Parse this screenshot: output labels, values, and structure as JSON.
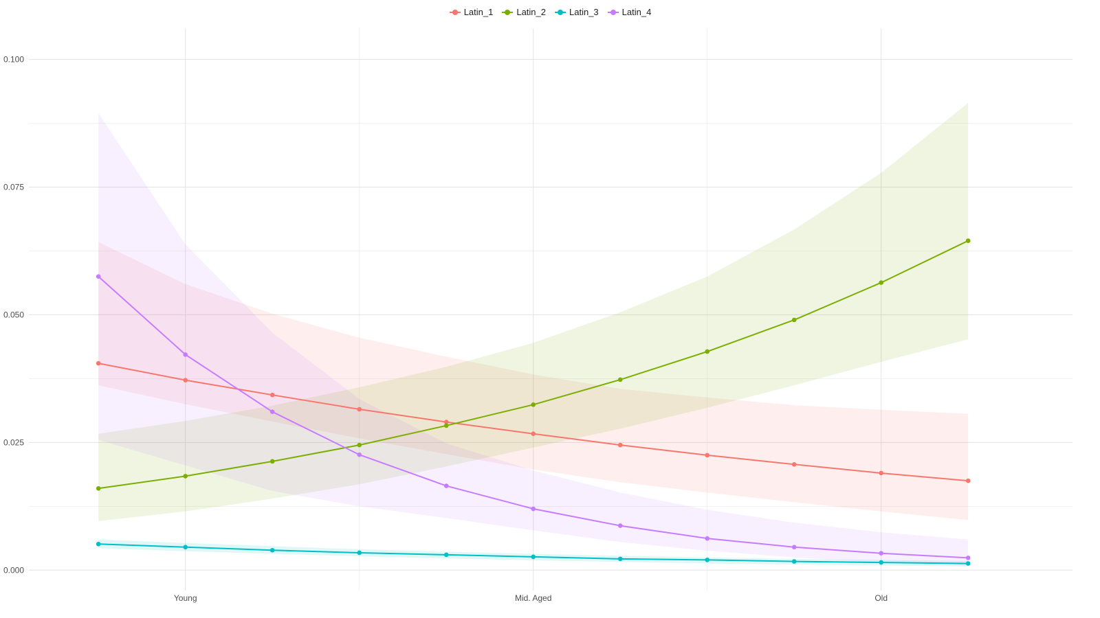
{
  "chart_data": {
    "type": "line",
    "title": "",
    "xlabel": "",
    "ylabel": "",
    "x": [
      1,
      1.5,
      2,
      2.5,
      3,
      3.5,
      4,
      4.5,
      5,
      5.5,
      6
    ],
    "xlim": [
      0.6,
      6.6
    ],
    "x_ticks": [
      {
        "value": 1.5,
        "label": "Young"
      },
      {
        "value": 3.5,
        "label": "Mid. Aged"
      },
      {
        "value": 5.5,
        "label": "Old"
      }
    ],
    "x_minor_ticks": [
      2.5,
      4.5
    ],
    "ylim": [
      -0.004,
      0.106
    ],
    "y_ticks": [
      0.0,
      0.025,
      0.05,
      0.075,
      0.1
    ],
    "y_tick_labels": [
      "0.000",
      "0.025",
      "0.050",
      "0.075",
      "0.100"
    ],
    "y_minor_ticks": [
      0.0125,
      0.0375,
      0.0625,
      0.0875
    ],
    "grid": true,
    "legend_position": "top",
    "series": [
      {
        "name": "Latin_1",
        "color": "#F8766D",
        "values": [
          0.0405,
          0.0372,
          0.0343,
          0.0315,
          0.029,
          0.0267,
          0.0245,
          0.0225,
          0.0207,
          0.019,
          0.0175
        ],
        "lower": [
          0.0362,
          0.0325,
          0.0291,
          0.0258,
          0.0227,
          0.0197,
          0.0172,
          0.0152,
          0.0133,
          0.0115,
          0.0098
        ],
        "upper": [
          0.0642,
          0.056,
          0.0502,
          0.0455,
          0.0418,
          0.0383,
          0.0355,
          0.0338,
          0.0323,
          0.0314,
          0.0306
        ]
      },
      {
        "name": "Latin_2",
        "color": "#7CAE00",
        "values": [
          0.016,
          0.0184,
          0.0213,
          0.0245,
          0.0283,
          0.0324,
          0.0373,
          0.0428,
          0.049,
          0.0563,
          0.0645
        ],
        "lower": [
          0.0096,
          0.0115,
          0.014,
          0.0168,
          0.0203,
          0.024,
          0.0277,
          0.0318,
          0.0362,
          0.0408,
          0.0452
        ],
        "upper": [
          0.0267,
          0.0292,
          0.0322,
          0.0358,
          0.0398,
          0.0445,
          0.0505,
          0.0575,
          0.0667,
          0.0778,
          0.0915
        ]
      },
      {
        "name": "Latin_3",
        "color": "#00BFC4",
        "values": [
          0.0051,
          0.0045,
          0.0039,
          0.0034,
          0.003,
          0.0026,
          0.0022,
          0.002,
          0.0017,
          0.0015,
          0.0013
        ],
        "lower": [
          0.0043,
          0.0037,
          0.0032,
          0.0027,
          0.0023,
          0.0019,
          0.0016,
          0.0013,
          0.0011,
          0.0009,
          0.0007
        ],
        "upper": [
          0.006,
          0.0053,
          0.0047,
          0.0041,
          0.0036,
          0.0032,
          0.0028,
          0.0025,
          0.0022,
          0.002,
          0.0018
        ]
      },
      {
        "name": "Latin_4",
        "color": "#C77CFF",
        "values": [
          0.0575,
          0.0422,
          0.031,
          0.0226,
          0.0165,
          0.012,
          0.0087,
          0.0062,
          0.0045,
          0.0033,
          0.0024
        ],
        "lower": [
          0.0255,
          0.0205,
          0.0155,
          0.0125,
          0.0102,
          0.0078,
          0.0055,
          0.0038,
          0.0025,
          0.0015,
          0.0009
        ],
        "upper": [
          0.0895,
          0.0638,
          0.0465,
          0.0335,
          0.0248,
          0.0195,
          0.0152,
          0.0118,
          0.0093,
          0.0074,
          0.006
        ]
      }
    ]
  }
}
